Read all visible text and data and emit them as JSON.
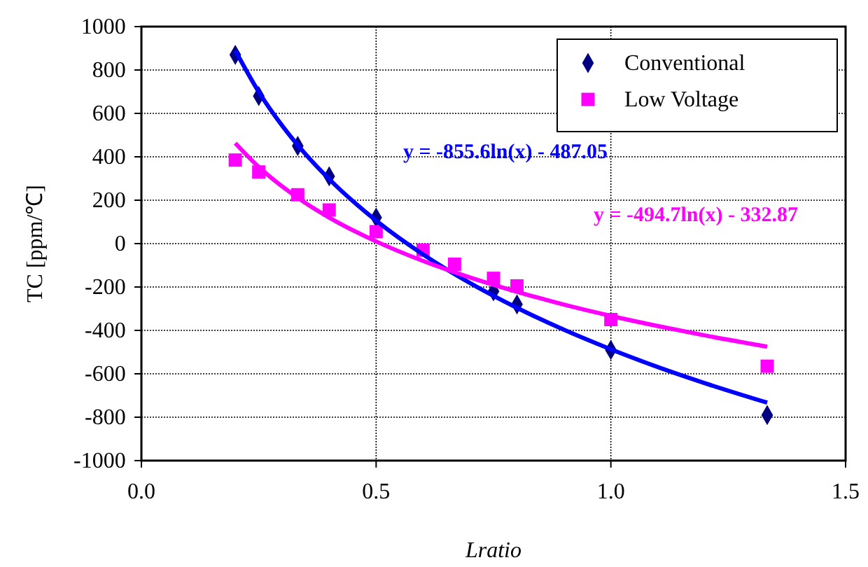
{
  "chart_data": {
    "type": "scatter",
    "xlabel": "Lratio",
    "ylabel": "TC [ppm/℃]",
    "xlim": [
      0,
      1.5
    ],
    "xticks": [
      {
        "value": 0,
        "label": "0.0"
      },
      {
        "value": 0.5,
        "label": "0.5"
      },
      {
        "value": 1,
        "label": "1.0"
      },
      {
        "value": 1.5,
        "label": "1.5"
      }
    ],
    "ylim": [
      -1000,
      1000
    ],
    "yticks": [
      -1000,
      -800,
      -600,
      -400,
      -200,
      0,
      200,
      400,
      600,
      800,
      1000
    ],
    "grid": true,
    "legend": "top right",
    "series": [
      {
        "name": "Conventional",
        "marker": "diamond",
        "color": "#000080",
        "x": [
          0.2,
          0.25,
          0.333,
          0.4,
          0.5,
          0.6,
          0.667,
          0.75,
          0.8,
          1.0,
          1.333
        ],
        "values": [
          870,
          680,
          450,
          310,
          120,
          null,
          null,
          -220,
          -280,
          -490,
          -790
        ]
      },
      {
        "name": "Low Voltage",
        "marker": "square",
        "color": "#ff00ff",
        "x": [
          0.2,
          0.25,
          0.333,
          0.4,
          0.5,
          0.6,
          0.667,
          0.75,
          0.8,
          1.0,
          1.333
        ],
        "values": [
          385,
          330,
          225,
          155,
          55,
          -30,
          -95,
          -160,
          -195,
          -350,
          -565
        ]
      },
      {
        "type": "line",
        "marker": "none",
        "color": "#0000ff",
        "x": [
          0.2,
          0.25,
          0.3,
          0.35,
          0.4,
          0.5,
          0.6,
          0.7,
          0.8,
          0.9,
          1.0,
          1.1,
          1.2,
          1.333
        ],
        "values": [
          890,
          699,
          543,
          411,
          297,
          106,
          -50,
          -182,
          -296,
          -397,
          -487,
          -569,
          -643,
          -733
        ]
      },
      {
        "type": "line",
        "marker": "none",
        "color": "#ff00ff",
        "x": [
          0.2,
          0.25,
          0.3,
          0.35,
          0.4,
          0.5,
          0.6,
          0.7,
          0.8,
          0.9,
          1.0,
          1.1,
          1.2,
          1.333
        ],
        "values": [
          463,
          353,
          263,
          186,
          120,
          10,
          -80,
          -156,
          -222,
          -281,
          -333,
          -380,
          -423,
          -475
        ]
      }
    ],
    "annotations": [
      "y = -855.6ln(x) - 487.05",
      "y = -494.7ln(x) - 332.87"
    ]
  }
}
